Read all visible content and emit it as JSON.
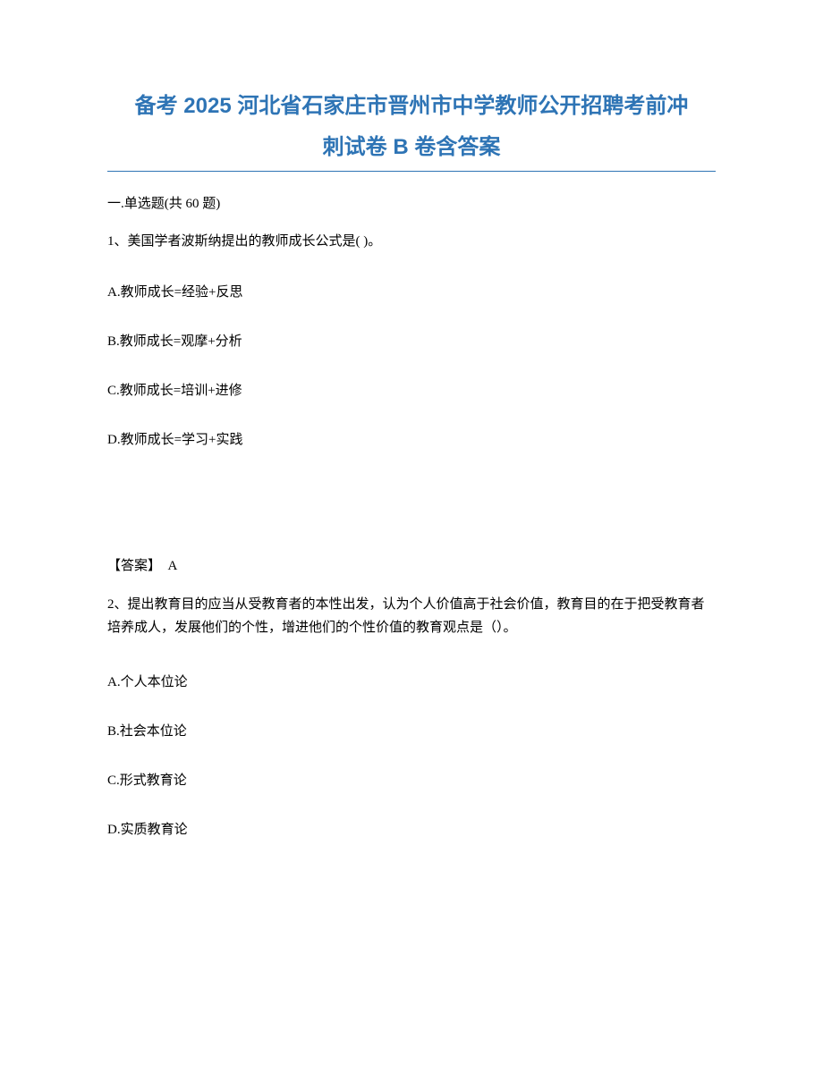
{
  "document": {
    "title_line1": "备考 2025 河北省石家庄市晋州市中学教师公开招聘考前冲",
    "title_line2": "刺试卷 B 卷含答案",
    "title_color": "#2e74b5",
    "title_fontsize": 24,
    "divider_color": "#2e74b5",
    "background_color": "#ffffff",
    "body_fontsize": 15,
    "body_color": "#000000"
  },
  "section": {
    "header": "一.单选题(共 60 题)"
  },
  "questions": [
    {
      "number": "1",
      "text": "1、美国学者波斯纳提出的教师成长公式是(  )。",
      "options": {
        "A": "A.教师成长=经验+反思",
        "B": "B.教师成长=观摩+分析",
        "C": "C.教师成长=培训+进修",
        "D": "D.教师成长=学习+实践"
      },
      "answer_label": "【答案】　A"
    },
    {
      "number": "2",
      "text": "2、提出教育目的应当从受教育者的本性出发，认为个人价值高于社会价值，教育目的在于把受教育者培养成人，发展他们的个性，增进他们的个性价值的教育观点是（）。",
      "options": {
        "A": "A.个人本位论",
        "B": "B.社会本位论",
        "C": "C.形式教育论",
        "D": "D.实质教育论"
      }
    }
  ]
}
